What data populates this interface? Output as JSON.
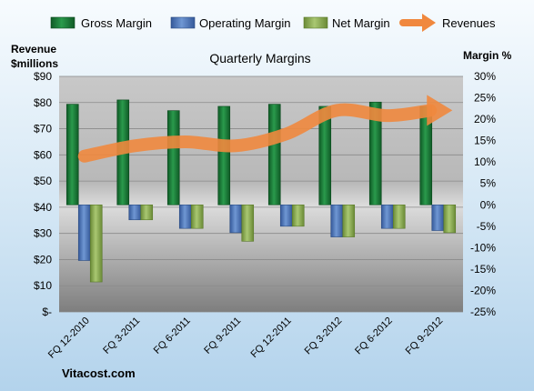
{
  "chart_data": {
    "type": "bar",
    "title": "Quarterly Margins",
    "left_axis": {
      "label_lines": [
        "Revenue",
        "$millions"
      ],
      "range": [
        0,
        90
      ],
      "ticks": [
        0,
        10,
        20,
        30,
        40,
        50,
        60,
        70,
        80,
        90
      ],
      "tick_labels": [
        "$-",
        "$10",
        "$20",
        "$30",
        "$40",
        "$50",
        "$60",
        "$70",
        "$80",
        "$90"
      ]
    },
    "right_axis": {
      "label": "Margin %",
      "range": [
        -25,
        30
      ],
      "ticks": [
        -25,
        -20,
        -15,
        -10,
        -5,
        0,
        5,
        10,
        15,
        20,
        25,
        30
      ],
      "tick_labels": [
        "-25%",
        "-20%",
        "-15%",
        "-10%",
        "-5%",
        "0%",
        "5%",
        "10%",
        "15%",
        "20%",
        "25%",
        "30%"
      ]
    },
    "categories": [
      "FQ 12-2010",
      "FQ 3-2011",
      "FQ 6-2011",
      "FQ 9-2011",
      "FQ 12-2011",
      "FQ 3-2012",
      "FQ 6-2012",
      "FQ 9-2012"
    ],
    "series": [
      {
        "name": "Gross Margin",
        "axis": "right",
        "kind": "bar",
        "color": "#1e7a3c",
        "values": [
          23.5,
          24.5,
          22,
          23,
          23.5,
          23,
          24,
          23
        ]
      },
      {
        "name": "Operating Margin",
        "axis": "right",
        "kind": "bar",
        "color": "#4f7bbf",
        "values": [
          -13,
          -3.5,
          -5.5,
          -6.5,
          -5,
          -7.5,
          -5.5,
          -6
        ]
      },
      {
        "name": "Net Margin",
        "axis": "right",
        "kind": "bar",
        "color": "#8cad52",
        "values": [
          -18,
          -3.5,
          -5.5,
          -8.5,
          -5,
          -7.5,
          -5.5,
          -6.5
        ]
      },
      {
        "name": "Revenues",
        "axis": "left",
        "kind": "line",
        "color": "#f0883e",
        "values": [
          59.5,
          63.5,
          65,
          63.5,
          68,
          77,
          75,
          77
        ]
      }
    ],
    "grid": true,
    "legend_position": "top",
    "footer": "Vitacost.com"
  }
}
